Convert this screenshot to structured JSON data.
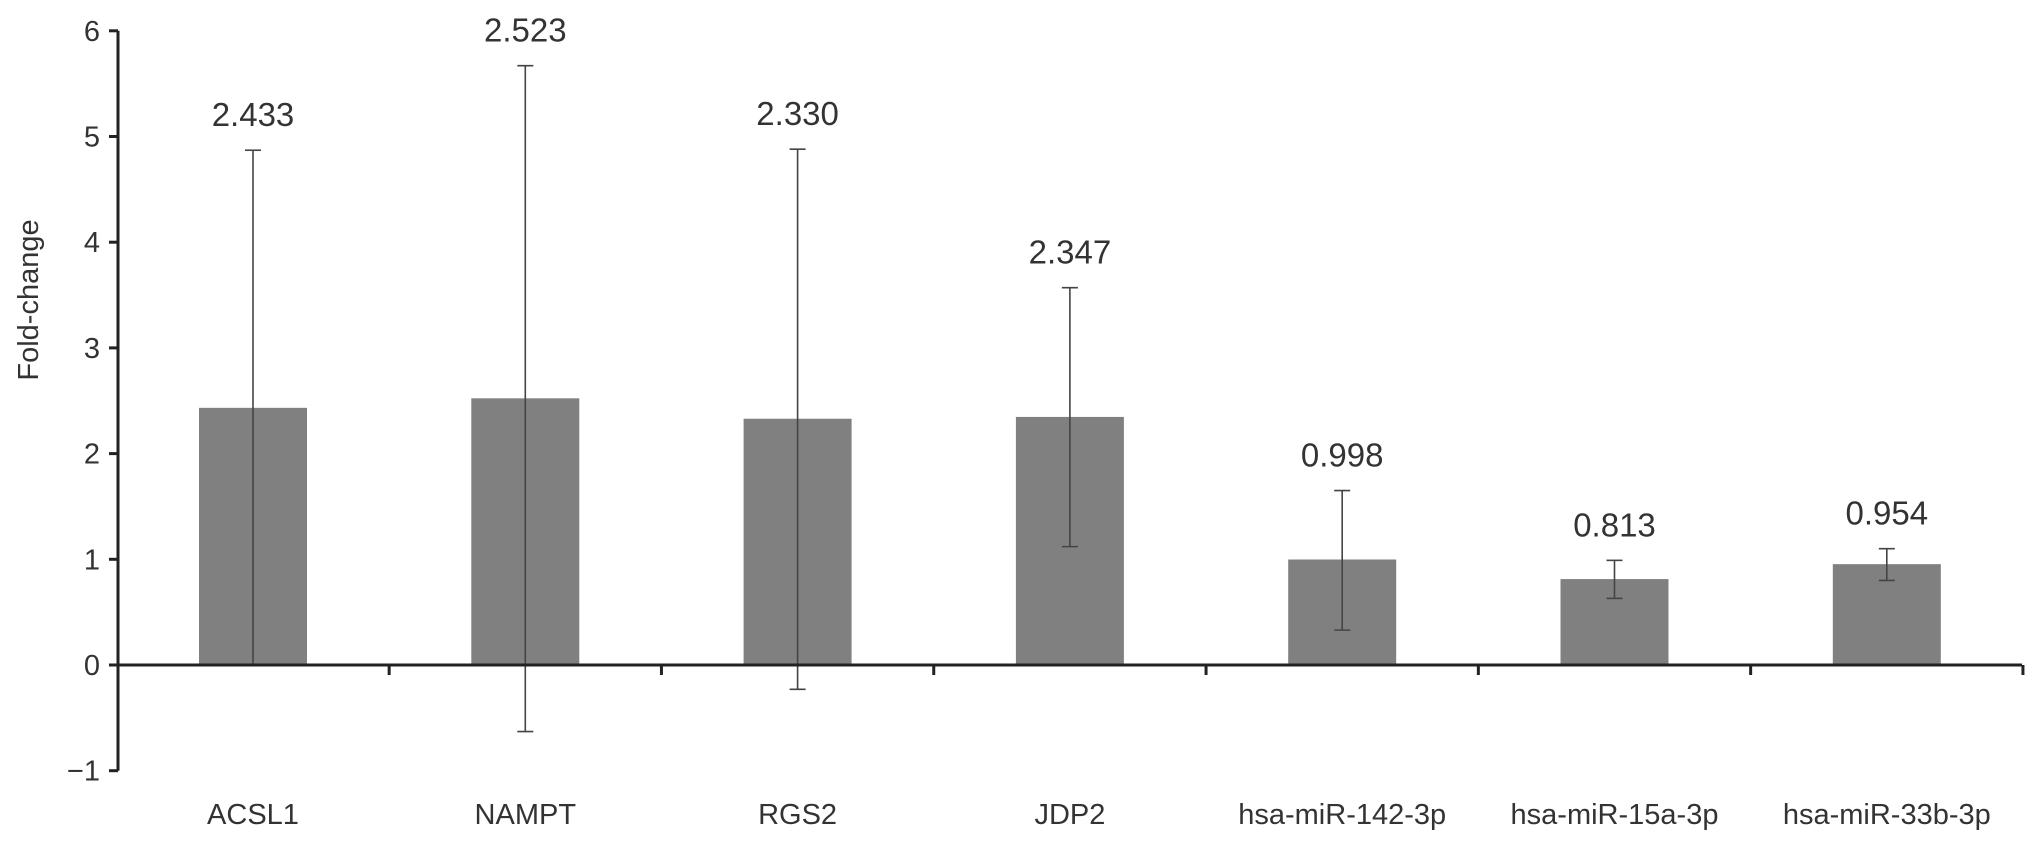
{
  "chart_data": {
    "type": "bar",
    "ylabel": "Fold-change",
    "xlabel": "",
    "ylim": [
      -1,
      6
    ],
    "yticks": [
      6,
      5,
      4,
      3,
      2,
      1,
      0,
      -1
    ],
    "ytick_labels": [
      "6",
      "5",
      "4",
      "3",
      "2",
      "1",
      "0",
      "−1"
    ],
    "categories": [
      "ACSL1",
      "NAMPT",
      "RGS2",
      "JDP2",
      "hsa-miR-142-3p",
      "hsa-miR-15a-3p",
      "hsa-miR-33b-3p"
    ],
    "values": [
      2.433,
      2.523,
      2.33,
      2.347,
      0.998,
      0.813,
      0.954
    ],
    "value_labels": [
      "2.433",
      "2.523",
      "2.330",
      "2.347",
      "0.998",
      "0.813",
      "0.954"
    ],
    "error_upper": [
      4.87,
      5.67,
      4.88,
      3.57,
      1.65,
      0.99,
      1.1
    ],
    "error_lower": [
      0.0,
      -0.63,
      -0.23,
      1.12,
      0.33,
      0.63,
      0.8
    ],
    "grid": false,
    "colors": {
      "bar": "#808080",
      "axis": "#222222",
      "error_bar": "#444444",
      "text": "#333333"
    }
  }
}
